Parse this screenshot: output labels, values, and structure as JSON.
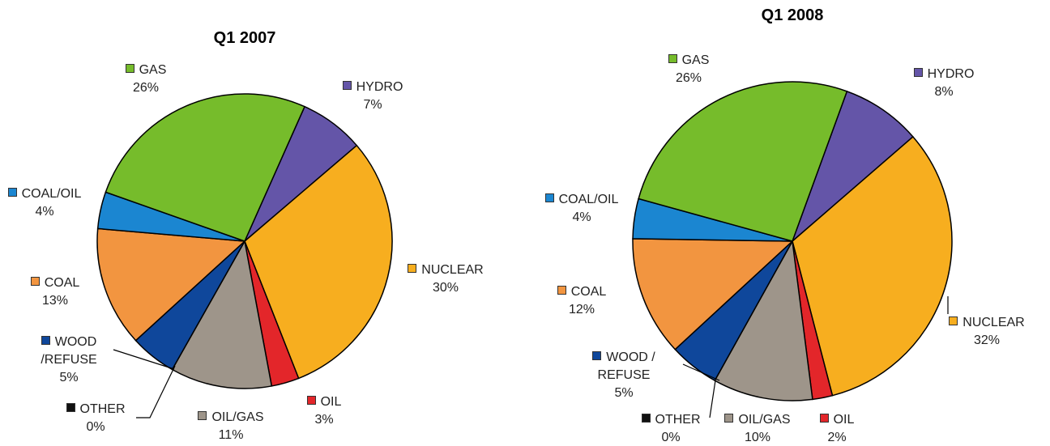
{
  "chart_data": [
    {
      "type": "pie",
      "title": "Q1 2007",
      "categories": [
        "HYDRO",
        "NUCLEAR",
        "OIL",
        "OIL/GAS",
        "OTHER",
        "WOOD /REFUSE",
        "COAL",
        "COAL/OIL",
        "GAS"
      ],
      "values": [
        7,
        30,
        3,
        11,
        0,
        5,
        13,
        4,
        26
      ],
      "value_labels": [
        "7%",
        "30%",
        "3%",
        "11%",
        "0%",
        "5%",
        "13%",
        "4%",
        "26%"
      ],
      "colors": [
        "#6455a8",
        "#f7ae1f",
        "#e3262a",
        "#9e958a",
        "#111111",
        "#0f479b",
        "#f29540",
        "#1b86d1",
        "#76bc2b"
      ]
    },
    {
      "type": "pie",
      "title": "Q1 2008",
      "categories": [
        "HYDRO",
        "NUCLEAR",
        "OIL",
        "OIL/GAS",
        "OTHER",
        "WOOD / REFUSE",
        "COAL",
        "COAL/OIL",
        "GAS"
      ],
      "values": [
        8,
        32,
        2,
        10,
        0,
        5,
        12,
        4,
        26
      ],
      "value_labels": [
        "8%",
        "32%",
        "2%",
        "10%",
        "0%",
        "5%",
        "12%",
        "4%",
        "26%"
      ],
      "colors": [
        "#6455a8",
        "#f7ae1f",
        "#e3262a",
        "#9e958a",
        "#111111",
        "#0f479b",
        "#f29540",
        "#1b86d1",
        "#76bc2b"
      ]
    }
  ]
}
